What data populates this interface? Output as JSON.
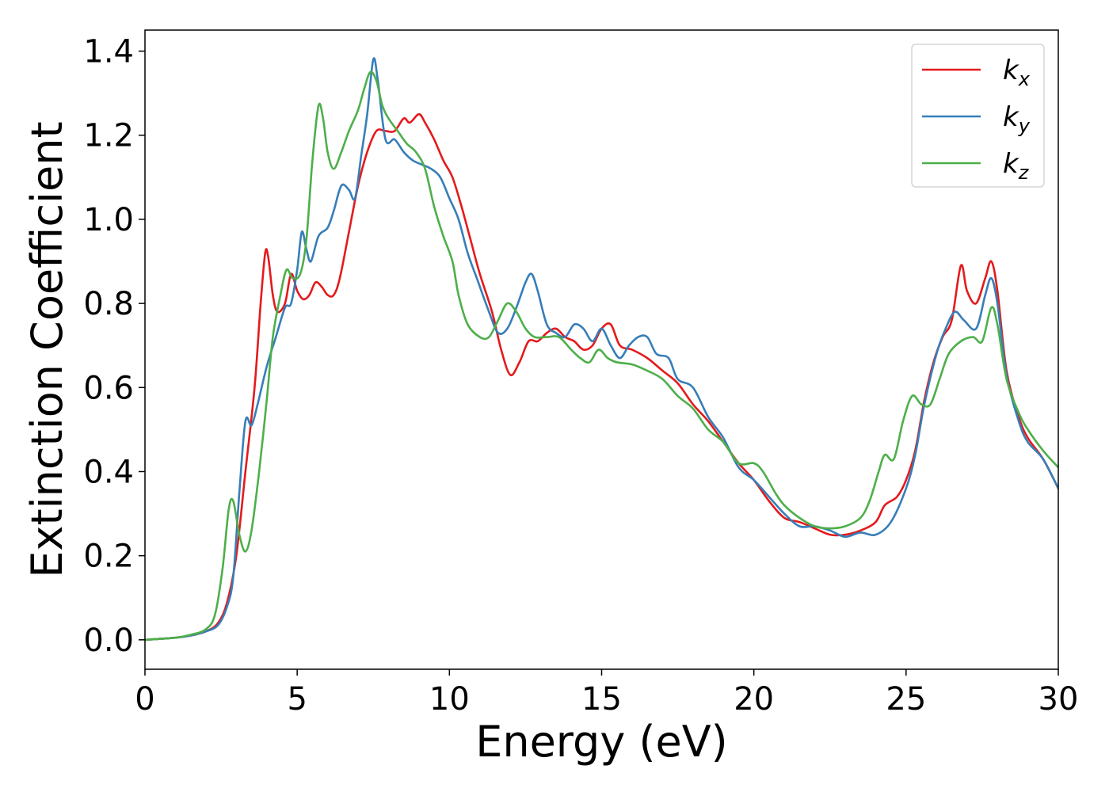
{
  "chart_data": {
    "type": "line",
    "title": "",
    "xlabel": "Energy (eV)",
    "ylabel": "Extinction Coefficient",
    "xlim": [
      0,
      30
    ],
    "ylim": [
      -0.07,
      1.45
    ],
    "xticks": [
      0,
      5,
      10,
      15,
      20,
      25,
      30
    ],
    "xtick_labels": [
      "0",
      "5",
      "10",
      "15",
      "20",
      "25",
      "30"
    ],
    "yticks": [
      0.0,
      0.2,
      0.4,
      0.6,
      0.8,
      1.0,
      1.2,
      1.4
    ],
    "ytick_labels": [
      "0.0",
      "0.2",
      "0.4",
      "0.6",
      "0.8",
      "1.0",
      "1.2",
      "1.4"
    ],
    "grid": false,
    "legend_position": "top-right",
    "series": [
      {
        "name": "k",
        "subscript": "x",
        "color": "#e41a1c",
        "points": [
          [
            0,
            0.0
          ],
          [
            1,
            0.005
          ],
          [
            1.5,
            0.01
          ],
          [
            2,
            0.02
          ],
          [
            2.4,
            0.04
          ],
          [
            2.7,
            0.09
          ],
          [
            3,
            0.2
          ],
          [
            3.3,
            0.4
          ],
          [
            3.6,
            0.6
          ],
          [
            3.8,
            0.8
          ],
          [
            3.95,
            0.92
          ],
          [
            4.05,
            0.91
          ],
          [
            4.2,
            0.82
          ],
          [
            4.35,
            0.78
          ],
          [
            4.6,
            0.8
          ],
          [
            4.8,
            0.87
          ],
          [
            5.0,
            0.83
          ],
          [
            5.2,
            0.81
          ],
          [
            5.4,
            0.82
          ],
          [
            5.6,
            0.85
          ],
          [
            5.8,
            0.84
          ],
          [
            6.0,
            0.82
          ],
          [
            6.2,
            0.82
          ],
          [
            6.4,
            0.86
          ],
          [
            6.7,
            0.97
          ],
          [
            7.0,
            1.08
          ],
          [
            7.3,
            1.16
          ],
          [
            7.6,
            1.21
          ],
          [
            7.9,
            1.21
          ],
          [
            8.2,
            1.21
          ],
          [
            8.5,
            1.24
          ],
          [
            8.7,
            1.23
          ],
          [
            9.0,
            1.25
          ],
          [
            9.2,
            1.23
          ],
          [
            9.5,
            1.19
          ],
          [
            9.8,
            1.14
          ],
          [
            10.1,
            1.1
          ],
          [
            10.4,
            1.03
          ],
          [
            10.7,
            0.95
          ],
          [
            11.0,
            0.87
          ],
          [
            11.4,
            0.78
          ],
          [
            11.7,
            0.69
          ],
          [
            12.0,
            0.63
          ],
          [
            12.3,
            0.66
          ],
          [
            12.6,
            0.71
          ],
          [
            12.9,
            0.71
          ],
          [
            13.2,
            0.73
          ],
          [
            13.5,
            0.74
          ],
          [
            13.8,
            0.72
          ],
          [
            14.1,
            0.71
          ],
          [
            14.4,
            0.69
          ],
          [
            14.7,
            0.7
          ],
          [
            15.0,
            0.74
          ],
          [
            15.3,
            0.75
          ],
          [
            15.6,
            0.7
          ],
          [
            16.0,
            0.69
          ],
          [
            16.5,
            0.67
          ],
          [
            17.0,
            0.64
          ],
          [
            17.5,
            0.61
          ],
          [
            18.0,
            0.56
          ],
          [
            18.5,
            0.52
          ],
          [
            19.0,
            0.47
          ],
          [
            19.5,
            0.42
          ],
          [
            20.0,
            0.38
          ],
          [
            20.5,
            0.33
          ],
          [
            21.0,
            0.29
          ],
          [
            21.5,
            0.28
          ],
          [
            22.0,
            0.265
          ],
          [
            22.5,
            0.25
          ],
          [
            23.0,
            0.25
          ],
          [
            23.5,
            0.26
          ],
          [
            24.0,
            0.28
          ],
          [
            24.3,
            0.32
          ],
          [
            24.7,
            0.34
          ],
          [
            25.0,
            0.38
          ],
          [
            25.3,
            0.45
          ],
          [
            25.6,
            0.57
          ],
          [
            25.9,
            0.66
          ],
          [
            26.2,
            0.72
          ],
          [
            26.5,
            0.76
          ],
          [
            26.8,
            0.89
          ],
          [
            27.0,
            0.83
          ],
          [
            27.3,
            0.8
          ],
          [
            27.6,
            0.86
          ],
          [
            27.8,
            0.9
          ],
          [
            28.0,
            0.83
          ],
          [
            28.3,
            0.64
          ],
          [
            28.7,
            0.53
          ],
          [
            29.0,
            0.48
          ],
          [
            29.5,
            0.43
          ],
          [
            30,
            0.36
          ]
        ]
      },
      {
        "name": "k",
        "subscript": "y",
        "color": "#377eb8",
        "points": [
          [
            0,
            0.0
          ],
          [
            1,
            0.005
          ],
          [
            1.5,
            0.01
          ],
          [
            2,
            0.02
          ],
          [
            2.4,
            0.035
          ],
          [
            2.7,
            0.08
          ],
          [
            2.9,
            0.15
          ],
          [
            3.1,
            0.35
          ],
          [
            3.3,
            0.52
          ],
          [
            3.5,
            0.51
          ],
          [
            3.7,
            0.56
          ],
          [
            4.0,
            0.65
          ],
          [
            4.3,
            0.72
          ],
          [
            4.6,
            0.79
          ],
          [
            4.8,
            0.8
          ],
          [
            5.0,
            0.88
          ],
          [
            5.15,
            0.97
          ],
          [
            5.3,
            0.93
          ],
          [
            5.45,
            0.9
          ],
          [
            5.7,
            0.96
          ],
          [
            6.0,
            0.98
          ],
          [
            6.2,
            1.02
          ],
          [
            6.45,
            1.08
          ],
          [
            6.7,
            1.07
          ],
          [
            6.9,
            1.05
          ],
          [
            7.1,
            1.15
          ],
          [
            7.3,
            1.25
          ],
          [
            7.5,
            1.38
          ],
          [
            7.65,
            1.33
          ],
          [
            7.9,
            1.19
          ],
          [
            8.2,
            1.19
          ],
          [
            8.5,
            1.16
          ],
          [
            8.8,
            1.14
          ],
          [
            9.1,
            1.13
          ],
          [
            9.4,
            1.12
          ],
          [
            9.7,
            1.1
          ],
          [
            10.0,
            1.05
          ],
          [
            10.3,
            1.0
          ],
          [
            10.6,
            0.92
          ],
          [
            10.9,
            0.86
          ],
          [
            11.3,
            0.78
          ],
          [
            11.6,
            0.73
          ],
          [
            11.9,
            0.74
          ],
          [
            12.2,
            0.79
          ],
          [
            12.5,
            0.85
          ],
          [
            12.7,
            0.87
          ],
          [
            12.9,
            0.83
          ],
          [
            13.2,
            0.75
          ],
          [
            13.5,
            0.73
          ],
          [
            13.8,
            0.72
          ],
          [
            14.1,
            0.75
          ],
          [
            14.4,
            0.74
          ],
          [
            14.7,
            0.71
          ],
          [
            15.0,
            0.74
          ],
          [
            15.3,
            0.7
          ],
          [
            15.6,
            0.67
          ],
          [
            15.9,
            0.7
          ],
          [
            16.2,
            0.72
          ],
          [
            16.5,
            0.72
          ],
          [
            16.8,
            0.68
          ],
          [
            17.2,
            0.67
          ],
          [
            17.5,
            0.62
          ],
          [
            18.0,
            0.6
          ],
          [
            18.5,
            0.53
          ],
          [
            19.0,
            0.48
          ],
          [
            19.5,
            0.41
          ],
          [
            20.0,
            0.38
          ],
          [
            20.5,
            0.34
          ],
          [
            21.0,
            0.3
          ],
          [
            21.5,
            0.27
          ],
          [
            22.0,
            0.27
          ],
          [
            22.5,
            0.26
          ],
          [
            23.0,
            0.245
          ],
          [
            23.5,
            0.255
          ],
          [
            24.0,
            0.25
          ],
          [
            24.5,
            0.28
          ],
          [
            25.0,
            0.36
          ],
          [
            25.3,
            0.44
          ],
          [
            25.6,
            0.56
          ],
          [
            26.0,
            0.68
          ],
          [
            26.3,
            0.74
          ],
          [
            26.6,
            0.78
          ],
          [
            26.9,
            0.76
          ],
          [
            27.3,
            0.74
          ],
          [
            27.6,
            0.82
          ],
          [
            27.8,
            0.86
          ],
          [
            28.0,
            0.8
          ],
          [
            28.3,
            0.63
          ],
          [
            28.7,
            0.52
          ],
          [
            29.0,
            0.47
          ],
          [
            29.5,
            0.43
          ],
          [
            30,
            0.36
          ]
        ]
      },
      {
        "name": "k",
        "subscript": "z",
        "color": "#4daf4a",
        "points": [
          [
            0,
            0.0
          ],
          [
            1,
            0.005
          ],
          [
            1.5,
            0.012
          ],
          [
            2,
            0.025
          ],
          [
            2.3,
            0.06
          ],
          [
            2.55,
            0.17
          ],
          [
            2.75,
            0.31
          ],
          [
            2.9,
            0.33
          ],
          [
            3.1,
            0.25
          ],
          [
            3.3,
            0.21
          ],
          [
            3.5,
            0.26
          ],
          [
            3.75,
            0.4
          ],
          [
            4.0,
            0.57
          ],
          [
            4.2,
            0.72
          ],
          [
            4.45,
            0.82
          ],
          [
            4.65,
            0.88
          ],
          [
            4.85,
            0.86
          ],
          [
            5.1,
            0.87
          ],
          [
            5.3,
            0.95
          ],
          [
            5.5,
            1.14
          ],
          [
            5.7,
            1.27
          ],
          [
            5.85,
            1.24
          ],
          [
            6.0,
            1.16
          ],
          [
            6.2,
            1.12
          ],
          [
            6.45,
            1.16
          ],
          [
            6.7,
            1.21
          ],
          [
            7.0,
            1.26
          ],
          [
            7.2,
            1.31
          ],
          [
            7.4,
            1.35
          ],
          [
            7.6,
            1.33
          ],
          [
            7.8,
            1.27
          ],
          [
            8.0,
            1.24
          ],
          [
            8.3,
            1.21
          ],
          [
            8.6,
            1.18
          ],
          [
            8.9,
            1.16
          ],
          [
            9.2,
            1.12
          ],
          [
            9.5,
            1.03
          ],
          [
            9.8,
            0.96
          ],
          [
            10.1,
            0.9
          ],
          [
            10.3,
            0.82
          ],
          [
            10.6,
            0.75
          ],
          [
            11.0,
            0.72
          ],
          [
            11.3,
            0.72
          ],
          [
            11.6,
            0.76
          ],
          [
            11.9,
            0.8
          ],
          [
            12.2,
            0.78
          ],
          [
            12.5,
            0.74
          ],
          [
            12.8,
            0.72
          ],
          [
            13.2,
            0.72
          ],
          [
            13.6,
            0.72
          ],
          [
            14.0,
            0.69
          ],
          [
            14.3,
            0.67
          ],
          [
            14.6,
            0.66
          ],
          [
            14.9,
            0.69
          ],
          [
            15.2,
            0.67
          ],
          [
            15.5,
            0.66
          ],
          [
            16.0,
            0.655
          ],
          [
            16.5,
            0.64
          ],
          [
            17.0,
            0.62
          ],
          [
            17.5,
            0.58
          ],
          [
            18.0,
            0.55
          ],
          [
            18.5,
            0.5
          ],
          [
            19.0,
            0.47
          ],
          [
            19.5,
            0.42
          ],
          [
            20.0,
            0.42
          ],
          [
            20.3,
            0.4
          ],
          [
            20.7,
            0.35
          ],
          [
            21.0,
            0.32
          ],
          [
            21.5,
            0.29
          ],
          [
            22.0,
            0.27
          ],
          [
            22.5,
            0.265
          ],
          [
            23.0,
            0.27
          ],
          [
            23.5,
            0.29
          ],
          [
            23.8,
            0.33
          ],
          [
            24.1,
            0.4
          ],
          [
            24.3,
            0.44
          ],
          [
            24.6,
            0.43
          ],
          [
            24.9,
            0.52
          ],
          [
            25.2,
            0.58
          ],
          [
            25.5,
            0.56
          ],
          [
            25.8,
            0.56
          ],
          [
            26.1,
            0.62
          ],
          [
            26.4,
            0.68
          ],
          [
            26.8,
            0.71
          ],
          [
            27.2,
            0.72
          ],
          [
            27.5,
            0.71
          ],
          [
            27.8,
            0.79
          ],
          [
            28.0,
            0.75
          ],
          [
            28.3,
            0.62
          ],
          [
            28.7,
            0.54
          ],
          [
            29.0,
            0.5
          ],
          [
            29.5,
            0.45
          ],
          [
            30,
            0.41
          ]
        ]
      }
    ]
  }
}
